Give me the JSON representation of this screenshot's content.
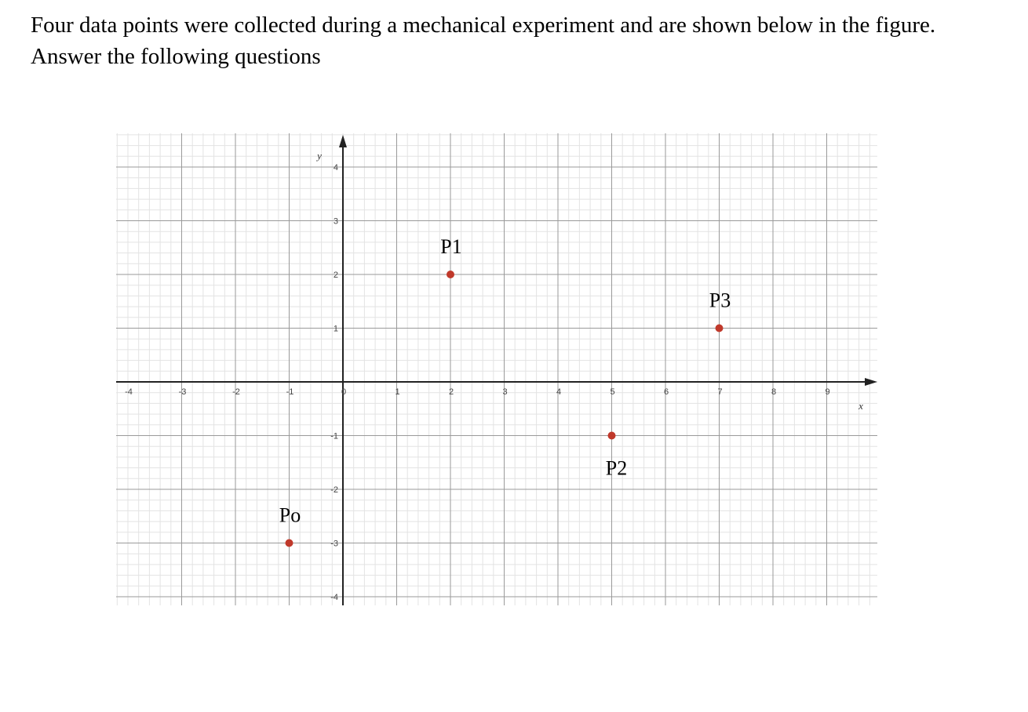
{
  "question": {
    "line1": "Four data points were collected during a mechanical experiment and are shown below in the figure.",
    "line2": "Answer the following questions"
  },
  "chart_data": {
    "type": "scatter",
    "xlabel": "x",
    "ylabel": "y",
    "xlim": [
      -4,
      10
    ],
    "ylim": [
      -4,
      4
    ],
    "x_ticks": [
      "-4",
      "-3",
      "-2",
      "-1",
      "0",
      "1",
      "2",
      "3",
      "4",
      "5",
      "6",
      "7",
      "8",
      "9"
    ],
    "y_ticks": [
      "4",
      "3",
      "2",
      "1",
      "-1",
      "-2",
      "-3",
      "-4"
    ],
    "grid": true,
    "minor_grid_per_unit": 5,
    "point_color": "#c0392b",
    "points": [
      {
        "label": "Po",
        "x": -1,
        "y": -3
      },
      {
        "label": "P1",
        "x": 2,
        "y": 2
      },
      {
        "label": "P2",
        "x": 5,
        "y": -1
      },
      {
        "label": "P3",
        "x": 7,
        "y": 1
      }
    ]
  }
}
